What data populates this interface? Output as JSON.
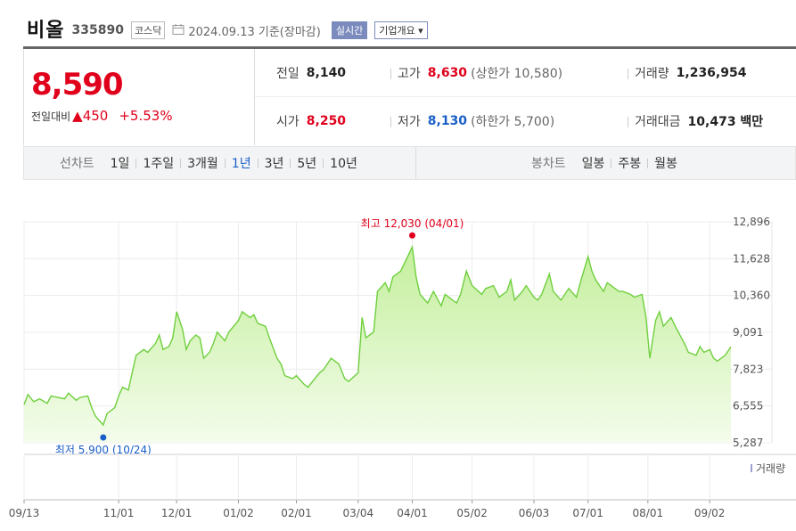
{
  "header": {
    "name": "비올",
    "code": "335890",
    "market": "코스닥",
    "date_text": "2024.09.13 기준(장마감)",
    "realtime_label": "실시간",
    "corp_info_label": "기업개요 ▾"
  },
  "price": {
    "current": "8,590",
    "change_label": "전일대비",
    "change_arrow": "▲",
    "change": "450",
    "change_pct": "+5.53%"
  },
  "stats": {
    "prev_close_label": "전일",
    "prev_close": "8,140",
    "high_label": "고가",
    "high": "8,630",
    "upper_limit": "(상한가 10,580)",
    "volume_label": "거래량",
    "volume": "1,236,954",
    "open_label": "시가",
    "open": "8,250",
    "low_label": "저가",
    "low": "8,130",
    "lower_limit": "(하한가 5,700)",
    "amount_label": "거래대금",
    "amount": "10,473 백만"
  },
  "period_bar": {
    "line_label": "선차트",
    "line_items": [
      "1일",
      "1주일",
      "3개월",
      "1년",
      "3년",
      "5년",
      "10년"
    ],
    "line_selected": "1년",
    "candle_label": "봉차트",
    "candle_items": [
      "일봉",
      "주봉",
      "월봉"
    ]
  },
  "colors": {
    "up": "#e0001b",
    "down": "#1a5fc8",
    "line": "#6fcf3e",
    "fill_top": "#c4ef9c",
    "fill_bottom": "#f4fcec",
    "volume_bar": "#9aa0d0"
  },
  "chart_data": {
    "type": "area",
    "y_ticks": [
      "12,896",
      "11,628",
      "10,360",
      "9,091",
      "7,823",
      "6,555",
      "5,287"
    ],
    "ylim": [
      5287,
      12896
    ],
    "x_tick_labels": [
      "09/13",
      "11/01",
      "12/01",
      "01/02",
      "02/01",
      "03/04",
      "04/01",
      "05/02",
      "06/03",
      "07/01",
      "08/01",
      "09/02"
    ],
    "x_tick_dates": [
      "2023-09-13",
      "2023-11-01",
      "2023-12-01",
      "2024-01-02",
      "2024-02-01",
      "2024-03-04",
      "2024-04-01",
      "2024-05-02",
      "2024-06-03",
      "2024-07-01",
      "2024-08-01",
      "2024-09-02"
    ],
    "annotations": {
      "high_label": "최고 12,030 (04/01)",
      "high_value": 12030,
      "high_date": "2024-04-01",
      "low_label": "최저 5,900 (10/24)",
      "low_value": 5900,
      "low_date": "2023-10-24"
    },
    "volume_legend": "거래량",
    "series": [
      {
        "values": [
          [
            "2023-09-13",
            6600
          ],
          [
            "2023-09-15",
            6950
          ],
          [
            "2023-09-18",
            6700
          ],
          [
            "2023-09-21",
            6800
          ],
          [
            "2023-09-25",
            6650
          ],
          [
            "2023-09-27",
            6900
          ],
          [
            "2023-10-04",
            6800
          ],
          [
            "2023-10-06",
            7000
          ],
          [
            "2023-10-10",
            6750
          ],
          [
            "2023-10-12",
            6850
          ],
          [
            "2023-10-16",
            6900
          ],
          [
            "2023-10-18",
            6500
          ],
          [
            "2023-10-20",
            6200
          ],
          [
            "2023-10-24",
            5900
          ],
          [
            "2023-10-26",
            6300
          ],
          [
            "2023-10-30",
            6500
          ],
          [
            "2023-11-01",
            6900
          ],
          [
            "2023-11-03",
            7200
          ],
          [
            "2023-11-06",
            7100
          ],
          [
            "2023-11-08",
            7700
          ],
          [
            "2023-11-10",
            8300
          ],
          [
            "2023-11-14",
            8500
          ],
          [
            "2023-11-16",
            8400
          ],
          [
            "2023-11-20",
            8700
          ],
          [
            "2023-11-22",
            9000
          ],
          [
            "2023-11-24",
            8500
          ],
          [
            "2023-11-27",
            8600
          ],
          [
            "2023-11-29",
            8900
          ],
          [
            "2023-12-01",
            9800
          ],
          [
            "2023-12-04",
            9200
          ],
          [
            "2023-12-06",
            8500
          ],
          [
            "2023-12-08",
            8800
          ],
          [
            "2023-12-11",
            9000
          ],
          [
            "2023-12-13",
            8900
          ],
          [
            "2023-12-15",
            8200
          ],
          [
            "2023-12-18",
            8400
          ],
          [
            "2023-12-20",
            8700
          ],
          [
            "2023-12-22",
            9100
          ],
          [
            "2023-12-26",
            8800
          ],
          [
            "2023-12-28",
            9100
          ],
          [
            "2024-01-02",
            9500
          ],
          [
            "2024-01-04",
            9800
          ],
          [
            "2024-01-08",
            9600
          ],
          [
            "2024-01-10",
            9700
          ],
          [
            "2024-01-12",
            9400
          ],
          [
            "2024-01-16",
            9300
          ],
          [
            "2024-01-18",
            8900
          ],
          [
            "2024-01-22",
            8200
          ],
          [
            "2024-01-24",
            8000
          ],
          [
            "2024-01-26",
            7600
          ],
          [
            "2024-01-30",
            7500
          ],
          [
            "2024-02-01",
            7600
          ],
          [
            "2024-02-05",
            7300
          ],
          [
            "2024-02-07",
            7200
          ],
          [
            "2024-02-13",
            7700
          ],
          [
            "2024-02-15",
            7800
          ],
          [
            "2024-02-19",
            8200
          ],
          [
            "2024-02-21",
            8100
          ],
          [
            "2024-02-23",
            8000
          ],
          [
            "2024-02-26",
            7500
          ],
          [
            "2024-02-28",
            7400
          ],
          [
            "2024-03-04",
            7700
          ],
          [
            "2024-03-06",
            9600
          ],
          [
            "2024-03-08",
            8900
          ],
          [
            "2024-03-12",
            9100
          ],
          [
            "2024-03-14",
            10500
          ],
          [
            "2024-03-18",
            10800
          ],
          [
            "2024-03-20",
            10500
          ],
          [
            "2024-03-22",
            11000
          ],
          [
            "2024-03-26",
            11200
          ],
          [
            "2024-04-01",
            12030
          ],
          [
            "2024-04-03",
            11000
          ],
          [
            "2024-04-05",
            10400
          ],
          [
            "2024-04-09",
            10100
          ],
          [
            "2024-04-12",
            10500
          ],
          [
            "2024-04-16",
            10000
          ],
          [
            "2024-04-18",
            10400
          ],
          [
            "2024-04-22",
            10200
          ],
          [
            "2024-04-24",
            10100
          ],
          [
            "2024-04-26",
            10400
          ],
          [
            "2024-04-29",
            11200
          ],
          [
            "2024-05-02",
            10700
          ],
          [
            "2024-05-07",
            10400
          ],
          [
            "2024-05-09",
            10600
          ],
          [
            "2024-05-13",
            10700
          ],
          [
            "2024-05-16",
            10300
          ],
          [
            "2024-05-20",
            10500
          ],
          [
            "2024-05-22",
            10900
          ],
          [
            "2024-05-24",
            10200
          ],
          [
            "2024-05-28",
            10500
          ],
          [
            "2024-05-30",
            10700
          ],
          [
            "2024-06-03",
            10300
          ],
          [
            "2024-06-05",
            10200
          ],
          [
            "2024-06-07",
            10400
          ],
          [
            "2024-06-11",
            11100
          ],
          [
            "2024-06-13",
            10500
          ],
          [
            "2024-06-17",
            10200
          ],
          [
            "2024-06-19",
            10400
          ],
          [
            "2024-06-21",
            10600
          ],
          [
            "2024-06-25",
            10300
          ],
          [
            "2024-06-27",
            10800
          ],
          [
            "2024-07-01",
            11700
          ],
          [
            "2024-07-03",
            11200
          ],
          [
            "2024-07-05",
            10900
          ],
          [
            "2024-07-09",
            10500
          ],
          [
            "2024-07-11",
            10800
          ],
          [
            "2024-07-15",
            10600
          ],
          [
            "2024-07-17",
            10500
          ],
          [
            "2024-07-19",
            10500
          ],
          [
            "2024-07-23",
            10400
          ],
          [
            "2024-07-25",
            10300
          ],
          [
            "2024-07-29",
            10400
          ],
          [
            "2024-07-31",
            9600
          ],
          [
            "2024-08-02",
            8200
          ],
          [
            "2024-08-05",
            9500
          ],
          [
            "2024-08-07",
            9800
          ],
          [
            "2024-08-09",
            9300
          ],
          [
            "2024-08-13",
            9600
          ],
          [
            "2024-08-16",
            9200
          ],
          [
            "2024-08-20",
            8700
          ],
          [
            "2024-08-22",
            8400
          ],
          [
            "2024-08-26",
            8300
          ],
          [
            "2024-08-28",
            8600
          ],
          [
            "2024-08-30",
            8400
          ],
          [
            "2024-09-02",
            8500
          ],
          [
            "2024-09-04",
            8200
          ],
          [
            "2024-09-06",
            8100
          ],
          [
            "2024-09-10",
            8300
          ],
          [
            "2024-09-13",
            8590
          ]
        ]
      }
    ]
  }
}
